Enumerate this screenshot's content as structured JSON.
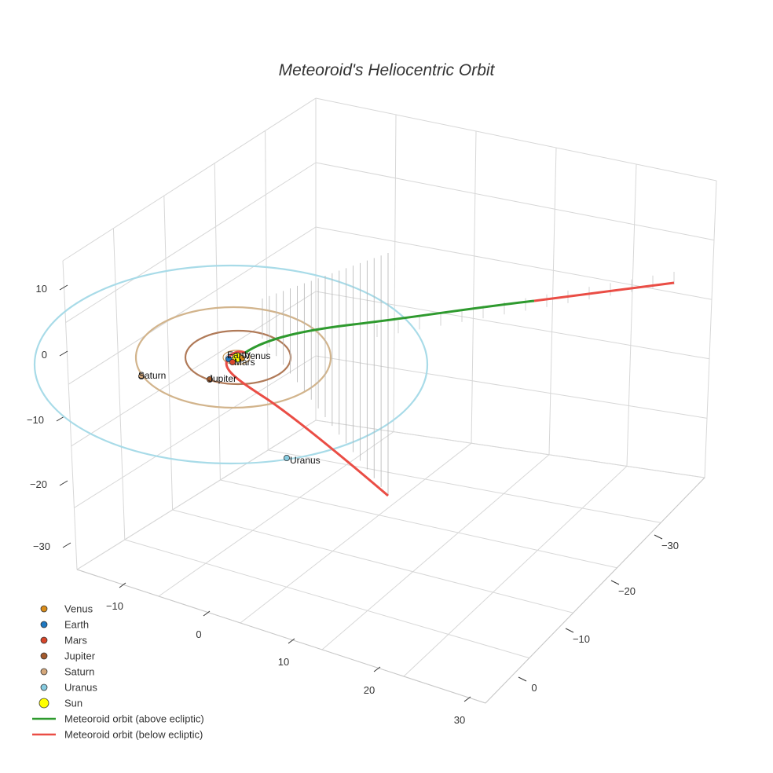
{
  "chart_data": {
    "type": "scatter3d",
    "title": "Meteoroid's Heliocentric Orbit",
    "axes": {
      "z_ticks": [
        "10",
        "0",
        "−10",
        "−20",
        "−30"
      ],
      "left_ticks": [
        "−10",
        "0",
        "10",
        "20",
        "30"
      ],
      "right_ticks": [
        "−30",
        "−20",
        "−10",
        "0"
      ]
    },
    "planets": [
      {
        "name": "Venus",
        "color": "#d98c1a"
      },
      {
        "name": "Earth",
        "color": "#1f78c1"
      },
      {
        "name": "Mars",
        "color": "#d8462a"
      },
      {
        "name": "Jupiter",
        "color": "#a35a2c"
      },
      {
        "name": "Saturn",
        "color": "#d4a77a"
      },
      {
        "name": "Uranus",
        "color": "#86cbe0"
      }
    ],
    "sun": {
      "name": "Sun",
      "color": "#ffff00"
    },
    "orbit_colors": {
      "Jupiter": "#b07a58",
      "Saturn": "#d2b48c",
      "Uranus": "#a8dbe8"
    },
    "meteoroid": {
      "above_label": "Meteoroid orbit (above ecliptic)",
      "below_label": "Meteoroid orbit (below ecliptic)",
      "above_color": "#2e9a2e",
      "below_color": "#ea4d45"
    }
  }
}
